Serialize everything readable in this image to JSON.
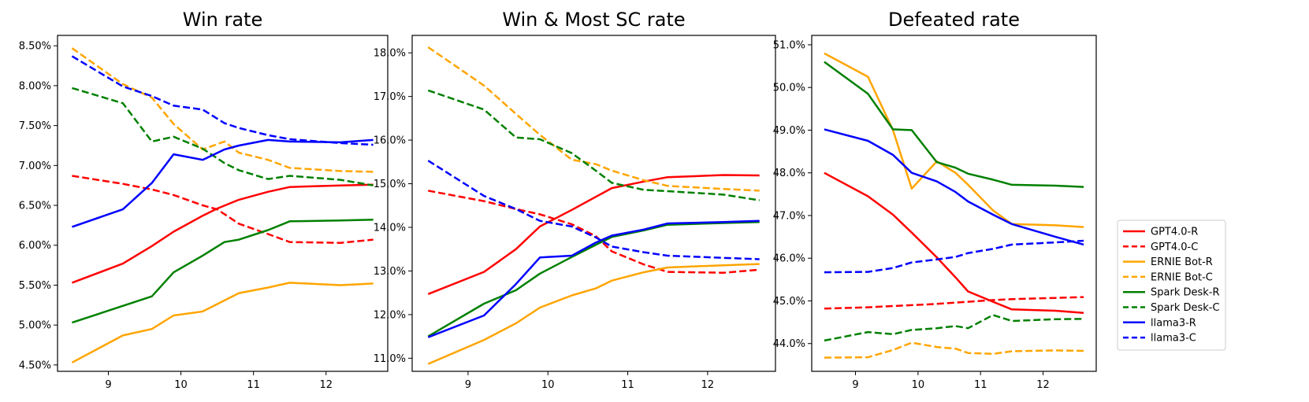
{
  "chart_data": [
    {
      "type": "line",
      "title": "Win rate",
      "xlim": [
        8.3,
        12.85
      ],
      "ylim": [
        4.42,
        8.63
      ],
      "xticks": [
        9,
        10,
        11,
        12
      ],
      "yticks": [
        4.5,
        5.0,
        5.5,
        6.0,
        6.5,
        7.0,
        7.5,
        8.0,
        8.5
      ],
      "ytick_labels": [
        "4.50%",
        "5.00%",
        "5.50%",
        "6.00%",
        "6.50%",
        "7.00%",
        "7.50%",
        "8.00%",
        "8.50%"
      ],
      "series": [
        {
          "name": "GPT4.0-R",
          "color": "#ff0000",
          "style": "solid",
          "x": [
            8.5,
            9.2,
            9.6,
            9.9,
            10.3,
            10.5,
            10.8,
            11.2,
            11.5,
            12.2,
            12.65
          ],
          "y": [
            5.53,
            5.77,
            5.99,
            6.17,
            6.37,
            6.46,
            6.57,
            6.67,
            6.73,
            6.75,
            6.76
          ]
        },
        {
          "name": "GPT4.0-C",
          "color": "#ff0000",
          "style": "dashed",
          "x": [
            8.5,
            9.2,
            9.6,
            9.9,
            10.3,
            10.5,
            10.8,
            11.2,
            11.5,
            12.2,
            12.65
          ],
          "y": [
            6.87,
            6.77,
            6.7,
            6.63,
            6.5,
            6.45,
            6.27,
            6.14,
            6.04,
            6.03,
            6.07
          ]
        },
        {
          "name": "ERNIE Bot-R",
          "color": "#ffa500",
          "style": "solid",
          "x": [
            8.5,
            9.2,
            9.6,
            9.9,
            10.3,
            10.8,
            11.2,
            11.5,
            12.2,
            12.65
          ],
          "y": [
            4.53,
            4.87,
            4.95,
            5.12,
            5.17,
            5.4,
            5.47,
            5.53,
            5.5,
            5.52
          ]
        },
        {
          "name": "ERNIE Bot-C",
          "color": "#ffa500",
          "style": "dashed",
          "x": [
            8.5,
            9.2,
            9.6,
            9.9,
            10.3,
            10.6,
            10.8,
            11.2,
            11.5,
            12.2,
            12.65
          ],
          "y": [
            8.47,
            8.02,
            7.85,
            7.52,
            7.2,
            7.3,
            7.16,
            7.07,
            6.97,
            6.93,
            6.92
          ]
        },
        {
          "name": "Spark Desk-R",
          "color": "#008000",
          "style": "solid",
          "x": [
            8.5,
            9.2,
            9.6,
            9.9,
            10.3,
            10.6,
            10.8,
            11.2,
            11.5,
            12.2,
            12.65
          ],
          "y": [
            5.03,
            5.24,
            5.36,
            5.66,
            5.87,
            6.04,
            6.07,
            6.19,
            6.3,
            6.31,
            6.32
          ]
        },
        {
          "name": "Spark Desk-C",
          "color": "#008000",
          "style": "dashed",
          "x": [
            8.5,
            9.2,
            9.6,
            9.9,
            10.3,
            10.6,
            10.8,
            11.2,
            11.5,
            12.2,
            12.65
          ],
          "y": [
            7.97,
            7.78,
            7.3,
            7.36,
            7.21,
            7.03,
            6.94,
            6.83,
            6.87,
            6.82,
            6.75
          ]
        },
        {
          "name": "llama3-R",
          "color": "#0000ff",
          "style": "solid",
          "x": [
            8.5,
            9.2,
            9.6,
            9.9,
            10.3,
            10.6,
            10.8,
            11.2,
            11.5,
            12.2,
            12.65
          ],
          "y": [
            6.23,
            6.45,
            6.78,
            7.14,
            7.07,
            7.2,
            7.25,
            7.32,
            7.3,
            7.29,
            7.32
          ]
        },
        {
          "name": "llama3-C",
          "color": "#0000ff",
          "style": "dashed",
          "x": [
            8.5,
            9.2,
            9.6,
            9.9,
            10.3,
            10.6,
            10.8,
            11.2,
            11.5,
            12.2,
            12.65
          ],
          "y": [
            8.37,
            7.99,
            7.87,
            7.75,
            7.7,
            7.53,
            7.47,
            7.38,
            7.33,
            7.28,
            7.26
          ]
        }
      ]
    },
    {
      "type": "line",
      "title": "Win & Most SC rate",
      "xlim": [
        8.3,
        12.85
      ],
      "ylim": [
        10.7,
        18.4
      ],
      "xticks": [
        9,
        10,
        11,
        12
      ],
      "yticks": [
        11,
        12,
        13,
        14,
        15,
        16,
        17,
        18
      ],
      "ytick_labels": [
        "11.0%",
        "12.0%",
        "13.0%",
        "14.0%",
        "15.0%",
        "16.0%",
        "17.0%",
        "18.0%"
      ],
      "series": [
        {
          "name": "GPT4.0-R",
          "color": "#ff0000",
          "style": "solid",
          "x": [
            8.5,
            9.2,
            9.6,
            9.9,
            10.3,
            10.6,
            10.8,
            11.2,
            11.5,
            12.2,
            12.65
          ],
          "y": [
            12.47,
            12.98,
            13.5,
            14.02,
            14.4,
            14.7,
            14.9,
            15.05,
            15.15,
            15.2,
            15.19
          ]
        },
        {
          "name": "GPT4.0-C",
          "color": "#ff0000",
          "style": "dashed",
          "x": [
            8.5,
            9.2,
            9.6,
            9.9,
            10.3,
            10.6,
            10.8,
            11.2,
            11.5,
            12.2,
            12.65
          ],
          "y": [
            14.84,
            14.6,
            14.42,
            14.3,
            14.07,
            13.8,
            13.45,
            13.15,
            12.98,
            12.96,
            13.03
          ]
        },
        {
          "name": "ERNIE Bot-R",
          "color": "#ffa500",
          "style": "solid",
          "x": [
            8.5,
            9.2,
            9.6,
            9.9,
            10.3,
            10.6,
            10.8,
            11.2,
            11.5,
            12.2,
            12.65
          ],
          "y": [
            10.87,
            11.42,
            11.8,
            12.16,
            12.44,
            12.6,
            12.78,
            12.97,
            13.08,
            13.13,
            13.16
          ]
        },
        {
          "name": "ERNIE Bot-C",
          "color": "#ffa500",
          "style": "dashed",
          "x": [
            8.5,
            9.2,
            9.6,
            9.9,
            10.3,
            10.6,
            10.8,
            11.2,
            11.5,
            12.2,
            12.65
          ],
          "y": [
            18.13,
            17.25,
            16.6,
            16.12,
            15.55,
            15.45,
            15.3,
            15.08,
            14.95,
            14.88,
            14.84
          ]
        },
        {
          "name": "Spark Desk-R",
          "color": "#008000",
          "style": "solid",
          "x": [
            8.5,
            9.2,
            9.6,
            9.9,
            10.3,
            10.6,
            10.8,
            11.2,
            11.5,
            12.2,
            12.65
          ],
          "y": [
            11.5,
            12.25,
            12.56,
            12.94,
            13.32,
            13.6,
            13.78,
            13.93,
            14.06,
            14.1,
            14.12
          ]
        },
        {
          "name": "Spark Desk-C",
          "color": "#008000",
          "style": "dashed",
          "x": [
            8.5,
            9.2,
            9.6,
            9.9,
            10.3,
            10.6,
            10.8,
            11.2,
            11.5,
            12.2,
            12.65
          ],
          "y": [
            17.14,
            16.7,
            16.06,
            16.02,
            15.7,
            15.3,
            15.02,
            14.86,
            14.83,
            14.75,
            14.62
          ]
        },
        {
          "name": "llama3-R",
          "color": "#0000ff",
          "style": "solid",
          "x": [
            8.5,
            9.2,
            9.6,
            9.9,
            10.3,
            10.6,
            10.8,
            11.2,
            11.5,
            12.2,
            12.65
          ],
          "y": [
            11.48,
            11.98,
            12.7,
            13.31,
            13.35,
            13.65,
            13.81,
            13.95,
            14.09,
            14.12,
            14.15
          ]
        },
        {
          "name": "llama3-C",
          "color": "#0000ff",
          "style": "dashed",
          "x": [
            8.5,
            9.2,
            9.6,
            9.9,
            10.3,
            10.6,
            10.8,
            11.2,
            11.5,
            12.2,
            12.65
          ],
          "y": [
            15.53,
            14.72,
            14.42,
            14.15,
            14.02,
            13.77,
            13.56,
            13.43,
            13.35,
            13.3,
            13.27
          ]
        }
      ]
    },
    {
      "type": "line",
      "title": "Defeated rate",
      "xlim": [
        8.3,
        12.85
      ],
      "ylim": [
        43.35,
        51.22
      ],
      "xticks": [
        9,
        10,
        11,
        12
      ],
      "yticks": [
        44,
        45,
        46,
        47,
        48,
        49,
        50,
        51
      ],
      "ytick_labels": [
        "44.0%",
        "45.0%",
        "46.0%",
        "47.0%",
        "48.0%",
        "49.0%",
        "50.0%",
        "51.0%"
      ],
      "series": [
        {
          "name": "GPT4.0-R",
          "color": "#ff0000",
          "style": "solid",
          "x": [
            8.5,
            9.2,
            9.6,
            9.9,
            10.3,
            10.6,
            10.8,
            11.2,
            11.5,
            12.2,
            12.65
          ],
          "y": [
            48.0,
            47.45,
            47.02,
            46.6,
            46.02,
            45.55,
            45.22,
            44.98,
            44.8,
            44.77,
            44.72
          ]
        },
        {
          "name": "GPT4.0-C",
          "color": "#ff0000",
          "style": "dashed",
          "x": [
            8.5,
            9.2,
            9.6,
            9.9,
            10.3,
            10.6,
            10.8,
            11.2,
            11.5,
            12.2,
            12.65
          ],
          "y": [
            44.82,
            44.85,
            44.88,
            44.9,
            44.93,
            44.96,
            44.98,
            45.02,
            45.04,
            45.07,
            45.09
          ]
        },
        {
          "name": "ERNIE Bot-R",
          "color": "#ffa500",
          "style": "solid",
          "x": [
            8.5,
            9.2,
            9.6,
            9.9,
            10.3,
            10.6,
            10.8,
            11.2,
            11.5,
            12.2,
            12.65
          ],
          "y": [
            50.8,
            50.25,
            49.0,
            47.63,
            48.27,
            48.0,
            47.72,
            47.12,
            46.8,
            46.77,
            46.73
          ]
        },
        {
          "name": "ERNIE Bot-C",
          "color": "#ffa500",
          "style": "dashed",
          "x": [
            8.5,
            9.2,
            9.6,
            9.9,
            10.3,
            10.6,
            10.8,
            11.2,
            11.5,
            12.2,
            12.65
          ],
          "y": [
            43.67,
            43.68,
            43.85,
            44.02,
            43.92,
            43.88,
            43.78,
            43.76,
            43.82,
            43.84,
            43.83
          ]
        },
        {
          "name": "Spark Desk-R",
          "color": "#008000",
          "style": "solid",
          "x": [
            8.5,
            9.2,
            9.6,
            9.9,
            10.3,
            10.6,
            10.8,
            11.2,
            11.5,
            12.2,
            12.65
          ],
          "y": [
            50.6,
            49.85,
            49.02,
            49.0,
            48.25,
            48.12,
            47.98,
            47.84,
            47.72,
            47.7,
            47.67
          ]
        },
        {
          "name": "Spark Desk-C",
          "color": "#008000",
          "style": "dashed",
          "x": [
            8.5,
            9.2,
            9.6,
            9.9,
            10.3,
            10.6,
            10.8,
            11.2,
            11.5,
            12.2,
            12.65
          ],
          "y": [
            44.07,
            44.27,
            44.22,
            44.32,
            44.36,
            44.41,
            44.36,
            44.67,
            44.53,
            44.57,
            44.58
          ]
        },
        {
          "name": "llama3-R",
          "color": "#0000ff",
          "style": "solid",
          "x": [
            8.5,
            9.2,
            9.6,
            9.9,
            10.3,
            10.6,
            10.8,
            11.2,
            11.5,
            12.2,
            12.65
          ],
          "y": [
            49.02,
            48.75,
            48.42,
            48.0,
            47.8,
            47.55,
            47.33,
            47.02,
            46.8,
            46.5,
            46.32
          ]
        },
        {
          "name": "llama3-C",
          "color": "#0000ff",
          "style": "dashed",
          "x": [
            8.5,
            9.2,
            9.6,
            9.9,
            10.3,
            10.6,
            10.8,
            11.2,
            11.5,
            12.2,
            12.65
          ],
          "y": [
            45.67,
            45.68,
            45.77,
            45.9,
            45.97,
            46.03,
            46.12,
            46.22,
            46.32,
            46.37,
            46.41
          ]
        }
      ]
    }
  ],
  "legend": {
    "placement": "right",
    "entries": [
      {
        "label": "GPT4.0-R",
        "color": "#ff0000",
        "style": "solid"
      },
      {
        "label": "GPT4.0-C",
        "color": "#ff0000",
        "style": "dashed"
      },
      {
        "label": "ERNIE Bot-R",
        "color": "#ffa500",
        "style": "solid"
      },
      {
        "label": "ERNIE Bot-C",
        "color": "#ffa500",
        "style": "dashed"
      },
      {
        "label": "Spark Desk-R",
        "color": "#008000",
        "style": "solid"
      },
      {
        "label": "Spark Desk-C",
        "color": "#008000",
        "style": "dashed"
      },
      {
        "label": "llama3-R",
        "color": "#0000ff",
        "style": "solid"
      },
      {
        "label": "llama3-C",
        "color": "#0000ff",
        "style": "dashed"
      }
    ]
  }
}
